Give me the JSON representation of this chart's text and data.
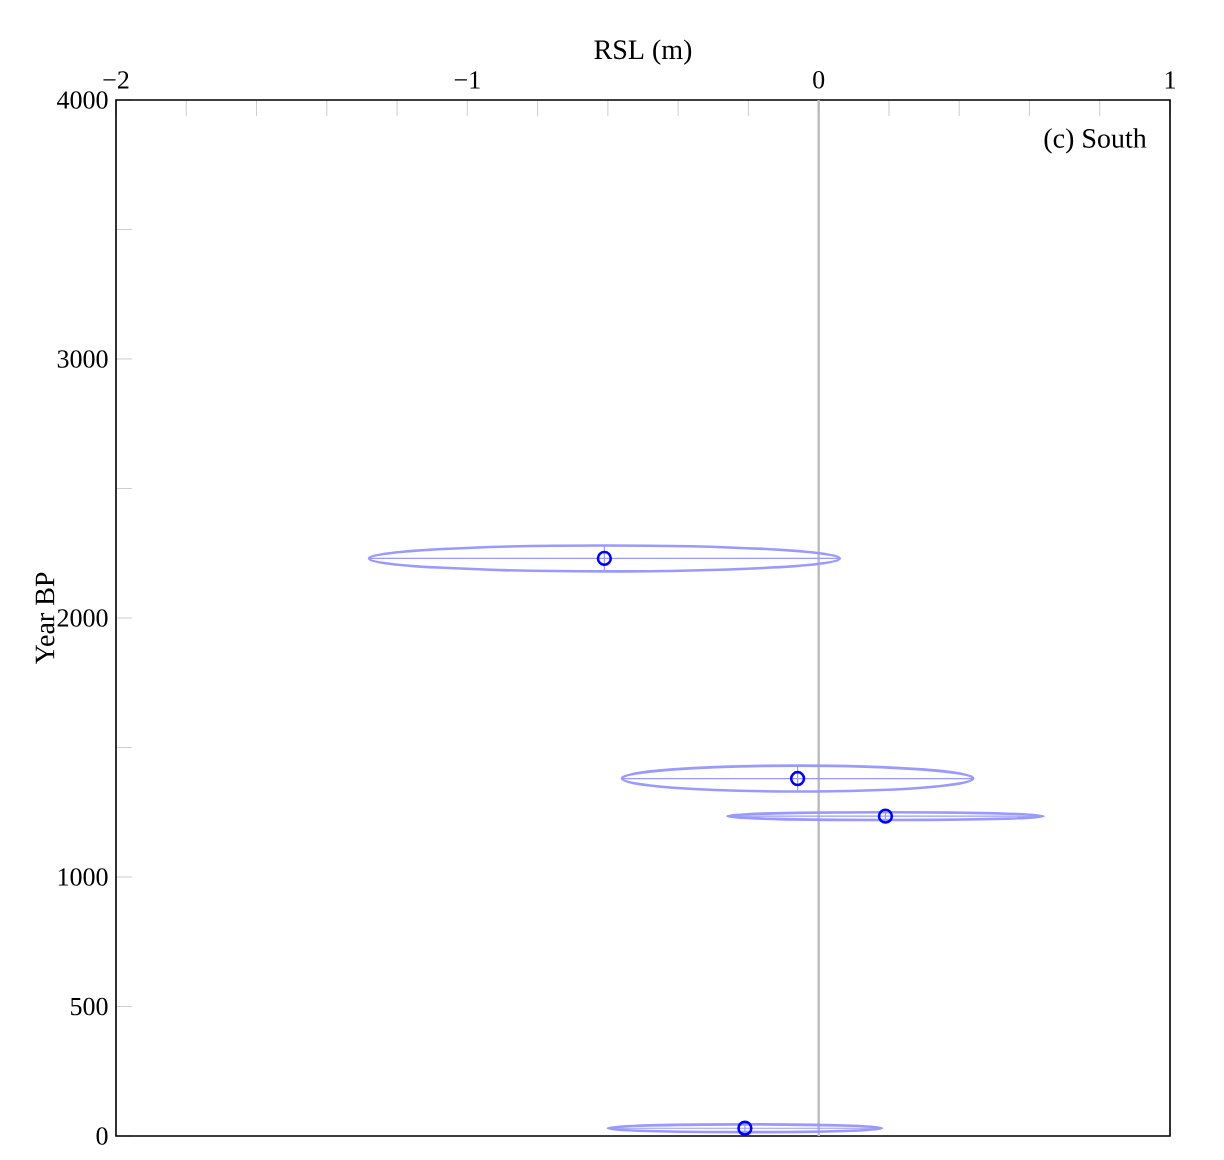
{
  "chart_data": {
    "type": "scatter",
    "xlabel": "RSL (m)",
    "ylabel": "Year BP",
    "annotations": [
      "(c) South"
    ],
    "x": [
      -0.61,
      -0.06,
      0.19,
      -0.21
    ],
    "values": [
      2230,
      1380,
      1235,
      30
    ],
    "xerrors": [
      0.67,
      0.5,
      0.45,
      0.39
    ],
    "errors": [
      50,
      50,
      15,
      15
    ],
    "color": "#0000ff",
    "marker": "circle",
    "xlim": [
      -2,
      1
    ],
    "ylim": [
      0,
      4000
    ],
    "xticks": [
      {
        "value": -2,
        "label": "−2"
      },
      {
        "value": -1.8,
        "label": null
      },
      {
        "value": -1.6,
        "label": null
      },
      {
        "value": -1.4,
        "label": null
      },
      {
        "value": -1.2,
        "label": null
      },
      {
        "value": -1,
        "label": "−1"
      },
      {
        "value": -0.8,
        "label": null
      },
      {
        "value": -0.6,
        "label": null
      },
      {
        "value": -0.4,
        "label": null
      },
      {
        "value": -0.2,
        "label": null
      },
      0,
      {
        "value": 0.2,
        "label": null
      },
      {
        "value": 0.4,
        "label": null
      },
      {
        "value": 0.6,
        "label": null
      },
      {
        "value": 0.8,
        "label": null
      },
      1
    ],
    "yticks": [
      0,
      500,
      1000,
      {
        "value": 1500,
        "label": null
      },
      2000,
      {
        "value": 2500,
        "label": null
      },
      3000,
      {
        "value": 3500,
        "label": null
      },
      4000
    ],
    "ref_lines": [
      {
        "axis": "x",
        "value": 0,
        "color": "#bbbbbb"
      }
    ]
  }
}
